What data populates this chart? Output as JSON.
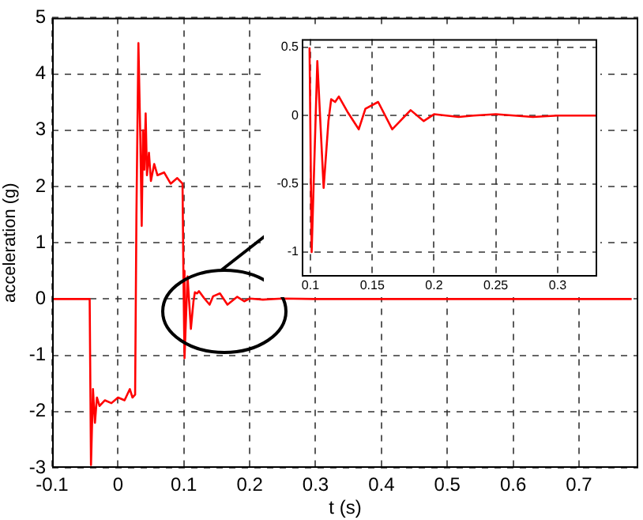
{
  "chart_data": [
    {
      "type": "line",
      "xlabel": "t (s)",
      "ylabel": "acceleration (g)",
      "color": "#ff0000",
      "x": [
        -0.1,
        -0.043,
        -0.041,
        -0.038,
        -0.035,
        -0.032,
        -0.028,
        -0.02,
        -0.01,
        0,
        0.01,
        0.018,
        0.022,
        0.026,
        0.028,
        0.031,
        0.034,
        0.036,
        0.038,
        0.04,
        0.042,
        0.044,
        0.047,
        0.05,
        0.055,
        0.06,
        0.07,
        0.08,
        0.09,
        0.098,
        0.0993,
        0.101,
        0.1056,
        0.1107,
        0.1146,
        0.1168,
        0.12,
        0.123,
        0.1305,
        0.1391,
        0.1445,
        0.1548,
        0.1662,
        0.1811,
        0.1917,
        0.2,
        0.22,
        0.25,
        0.3,
        0.4,
        0.5,
        0.6,
        0.7,
        0.78
      ],
      "values": [
        0,
        0,
        -2.95,
        -1.6,
        -2.2,
        -1.75,
        -1.9,
        -1.8,
        -1.85,
        -1.75,
        -1.8,
        -1.6,
        -1.75,
        -1.7,
        1.5,
        4.55,
        2.8,
        1.3,
        3.0,
        2.3,
        3.3,
        2.2,
        2.6,
        2.1,
        2.4,
        2.2,
        2.25,
        2.05,
        2.15,
        2.05,
        0.5,
        -1.05,
        0.4,
        -0.53,
        -0.04,
        0.12,
        0.1,
        0.14,
        0.02,
        -0.1,
        0.05,
        0.1,
        -0.1,
        0.04,
        -0.04,
        0.01,
        -0.01,
        0.01,
        0,
        0,
        0,
        0,
        0,
        0
      ],
      "xlim": [
        -0.1,
        0.79
      ],
      "ylim": [
        -3,
        5
      ],
      "xticks": [
        -0.1,
        0,
        0.1,
        0.2,
        0.3,
        0.4,
        0.5,
        0.6,
        0.7
      ],
      "yticks": [
        -3,
        -2,
        -1,
        0,
        1,
        2,
        3,
        4,
        5
      ],
      "grid": true,
      "marker": "none",
      "line_style": "solid"
    },
    {
      "type": "line",
      "color": "#ff0000",
      "x": [
        0.0993,
        0.101,
        0.1056,
        0.1107,
        0.1146,
        0.1168,
        0.12,
        0.123,
        0.1305,
        0.1391,
        0.1445,
        0.1548,
        0.1662,
        0.1811,
        0.1917,
        0.2,
        0.22,
        0.232,
        0.25,
        0.28,
        0.3,
        0.332
      ],
      "values": [
        0.5,
        -1.0,
        0.4,
        -0.53,
        -0.04,
        0.12,
        0.1,
        0.14,
        0.02,
        -0.1,
        0.05,
        0.1,
        -0.1,
        0.04,
        -0.04,
        0.01,
        -0.01,
        0.0,
        0.01,
        -0.01,
        0,
        0
      ],
      "xlim": [
        0.093,
        0.332
      ],
      "ylim": [
        -1.18,
        0.56
      ],
      "xticks": [
        0.1,
        0.15,
        0.2,
        0.25,
        0.3
      ],
      "yticks": [
        -1,
        -0.5,
        0,
        0.5
      ],
      "grid": true,
      "marker": "none",
      "line_style": "solid"
    }
  ]
}
